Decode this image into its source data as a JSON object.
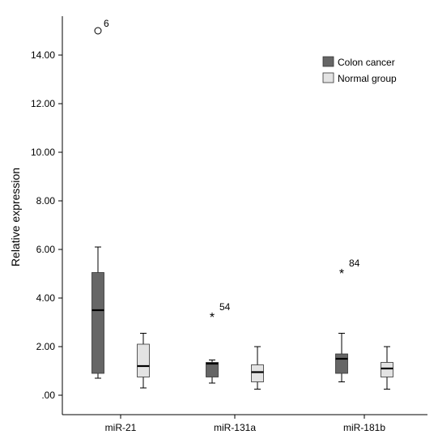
{
  "chart_data": {
    "type": "box",
    "title": "",
    "xlabel": "",
    "ylabel": "Relative expression",
    "ylim": [
      -0.8,
      15.6
    ],
    "yticks": [
      0,
      2,
      4,
      6,
      8,
      10,
      12,
      14
    ],
    "ytick_labels": [
      ".00",
      "2.00",
      "4.00",
      "6.00",
      "8.00",
      "10.00",
      "12.00",
      "14.00"
    ],
    "categories": [
      "miR-21",
      "miR-131a",
      "miR-181b"
    ],
    "grid": false,
    "legend_position": "top-right",
    "series": [
      {
        "name": "Colon cancer",
        "color": "#666666",
        "median_color": "#000000",
        "boxes": [
          {
            "min": 0.7,
            "q1": 0.9,
            "median": 3.5,
            "q3": 5.05,
            "max": 6.1,
            "outliers": [
              {
                "value": 15.0,
                "label": "6",
                "marker": "circle"
              }
            ]
          },
          {
            "min": 0.5,
            "q1": 0.75,
            "median": 1.3,
            "q3": 1.35,
            "max": 1.45,
            "outliers": [
              {
                "value": 3.3,
                "label": "54",
                "marker": "star"
              }
            ]
          },
          {
            "min": 0.55,
            "q1": 0.9,
            "median": 1.5,
            "q3": 1.7,
            "max": 2.55,
            "outliers": [
              {
                "value": 5.1,
                "label": "84",
                "marker": "star"
              }
            ]
          }
        ]
      },
      {
        "name": "Normal group",
        "color": "#e3e3e3",
        "median_color": "#000000",
        "boxes": [
          {
            "min": 0.3,
            "q1": 0.75,
            "median": 1.2,
            "q3": 2.1,
            "max": 2.55,
            "outliers": []
          },
          {
            "min": 0.25,
            "q1": 0.55,
            "median": 0.95,
            "q3": 1.25,
            "max": 2.0,
            "outliers": []
          },
          {
            "min": 0.25,
            "q1": 0.75,
            "median": 1.1,
            "q3": 1.35,
            "max": 2.0,
            "outliers": []
          }
        ]
      }
    ]
  }
}
